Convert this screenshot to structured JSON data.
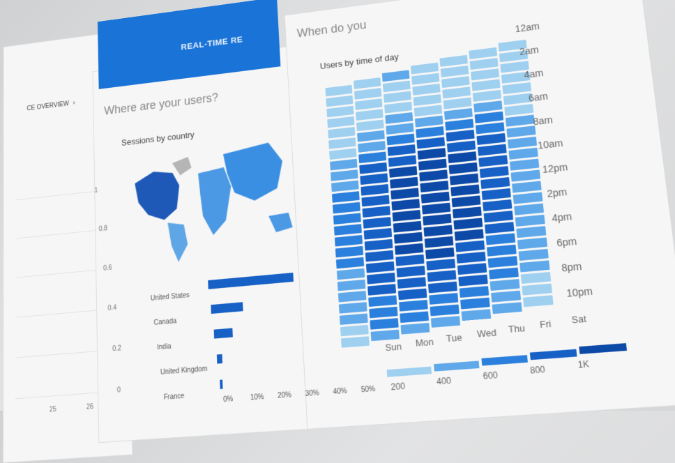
{
  "nav": {
    "overview_link": "CE OVERVIEW",
    "realtime_label": "REAL-TIME RE"
  },
  "left_chart": {
    "y_ticks": [
      "1",
      "0.8",
      "0.6",
      "0.4",
      "0.2",
      "0"
    ],
    "x_ticks": [
      "25",
      "26"
    ]
  },
  "where_section": {
    "title": "Where are your users?",
    "card_title": "Sessions by country"
  },
  "when_section": {
    "title": "When do you",
    "card_title": "Users by time of day"
  },
  "colors": {
    "accent": "#1a73d6",
    "bar": "#1660c6",
    "heat_scale": [
      "#9fd0f0",
      "#5fa9ea",
      "#2a80dc",
      "#1660c6",
      "#0d49a6"
    ]
  },
  "chart_data": [
    {
      "type": "bar",
      "orientation": "horizontal",
      "title": "Sessions by country",
      "categories": [
        "United States",
        "Canada",
        "India",
        "United Kingdom",
        "France"
      ],
      "values": [
        32,
        12,
        7,
        2,
        1
      ],
      "xlim": [
        0,
        50
      ],
      "x_ticks": [
        "0%",
        "10%",
        "20%",
        "30%",
        "40%",
        "50%"
      ]
    },
    {
      "type": "heatmap",
      "title": "Users by time of day",
      "x": [
        "Sun",
        "Mon",
        "Tue",
        "Wed",
        "Thu",
        "Fri",
        "Sat"
      ],
      "y_labels": [
        "12am",
        "2am",
        "4am",
        "6am",
        "8am",
        "10am",
        "12pm",
        "2pm",
        "4pm",
        "6pm",
        "8pm",
        "10pm"
      ],
      "y_count": 24,
      "legend": [
        "200",
        "400",
        "600",
        "800",
        "1K"
      ],
      "values": [
        [
          180,
          260,
          320,
          200,
          250,
          200,
          180
        ],
        [
          160,
          240,
          300,
          190,
          230,
          190,
          170
        ],
        [
          170,
          230,
          280,
          180,
          220,
          210,
          170
        ],
        [
          150,
          210,
          260,
          190,
          210,
          200,
          160
        ],
        [
          180,
          260,
          320,
          260,
          300,
          260,
          200
        ],
        [
          220,
          320,
          380,
          360,
          400,
          340,
          240
        ],
        [
          300,
          420,
          500,
          520,
          540,
          480,
          300
        ],
        [
          380,
          560,
          640,
          700,
          680,
          620,
          360
        ],
        [
          420,
          640,
          760,
          820,
          780,
          700,
          380
        ],
        [
          460,
          700,
          820,
          860,
          820,
          740,
          420
        ],
        [
          480,
          740,
          860,
          900,
          860,
          760,
          440
        ],
        [
          500,
          760,
          880,
          920,
          880,
          780,
          460
        ],
        [
          520,
          780,
          860,
          900,
          880,
          760,
          460
        ],
        [
          520,
          760,
          860,
          880,
          860,
          740,
          460
        ],
        [
          500,
          740,
          840,
          880,
          840,
          720,
          440
        ],
        [
          500,
          740,
          820,
          860,
          820,
          700,
          420
        ],
        [
          480,
          720,
          800,
          840,
          800,
          660,
          400
        ],
        [
          460,
          700,
          780,
          820,
          780,
          620,
          380
        ],
        [
          440,
          680,
          760,
          780,
          740,
          580,
          360
        ],
        [
          420,
          640,
          720,
          720,
          700,
          540,
          340
        ],
        [
          380,
          600,
          660,
          660,
          640,
          500,
          320
        ],
        [
          340,
          560,
          600,
          600,
          580,
          460,
          300
        ],
        [
          300,
          500,
          540,
          540,
          520,
          420,
          280
        ],
        [
          240,
          420,
          460,
          440,
          440,
          360,
          240
        ]
      ]
    }
  ]
}
